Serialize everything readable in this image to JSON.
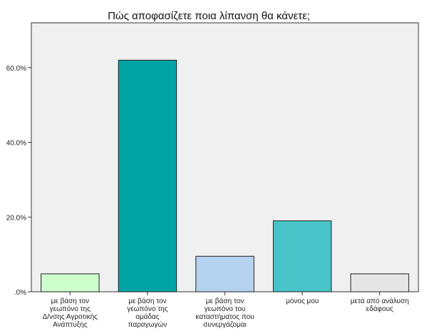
{
  "chart_data": {
    "type": "bar",
    "title": "Πώς αποφασίζετε ποια λίπανση θα κάνετε;",
    "xlabel": "",
    "ylabel": "",
    "ylim": [
      0,
      72
    ],
    "y_ticks": [
      0,
      20,
      40,
      60
    ],
    "y_tick_labels": [
      ".0%",
      "20.0%",
      "40.0%",
      "60.0%"
    ],
    "grid": false,
    "categories": [
      [
        "με βάση τον",
        "γεωπόνο της",
        "Δ/νσης Αγροτικής",
        "Ανάπτυξης"
      ],
      [
        "με βάση τον",
        "γεωπόνο της",
        "ομάδας",
        "παραγωγών"
      ],
      [
        "με βάση τον",
        "γεωπόνο του",
        "καταστήματος που",
        "συνεργάζομαι"
      ],
      [
        "μόνος μου"
      ],
      [
        "μετά από ανάλυση",
        "εδάφους"
      ]
    ],
    "values": [
      4.8,
      62.0,
      9.5,
      19.0,
      4.8
    ],
    "colors": [
      "#ccffcc",
      "#00a3a3",
      "#b5d3f0",
      "#48c4c8",
      "#e6e6e6"
    ],
    "plot_background": "#f0f0f0",
    "bar_border": "#222222"
  }
}
